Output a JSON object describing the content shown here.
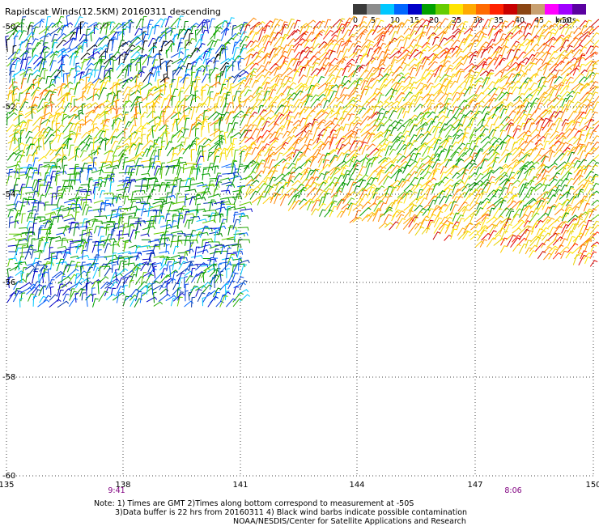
{
  "title": "Rapidscat Winds(12.5KM) 20160311 descending",
  "legend": {
    "labels": [
      "0",
      "5",
      "10",
      "15",
      "20",
      "25",
      "30",
      "35",
      "40",
      "45",
      ">50"
    ],
    "unit": "knots",
    "colors": [
      "#3a3a3a",
      "#8c8c8c",
      "#00c8ff",
      "#0066ff",
      "#0000c8",
      "#00a000",
      "#66cc00",
      "#ffe400",
      "#ffaa00",
      "#ff6a00",
      "#ff2200",
      "#c80000",
      "#8b4513",
      "#c8a070",
      "#ff00ff",
      "#a000ff",
      "#5a00a0"
    ]
  },
  "map": {
    "lon_ticks": [
      "135",
      "138",
      "141",
      "144",
      "147",
      "150"
    ],
    "lat_ticks": [
      "-50",
      "-52",
      "-54",
      "-56",
      "-58",
      "-60"
    ],
    "times": [
      "9:41",
      "8:06"
    ],
    "time_color": "#800080"
  },
  "notes": {
    "line1": "Note: 1) Times are GMT 2)Times along bottom correspond to measurement at -50S",
    "line2": "3)Data buffer is 22 hrs from 20160311 4) Black wind barbs indicate possible contamination",
    "credit": "NOAA/NESDIS/Center for Satellite Applications and Research"
  }
}
